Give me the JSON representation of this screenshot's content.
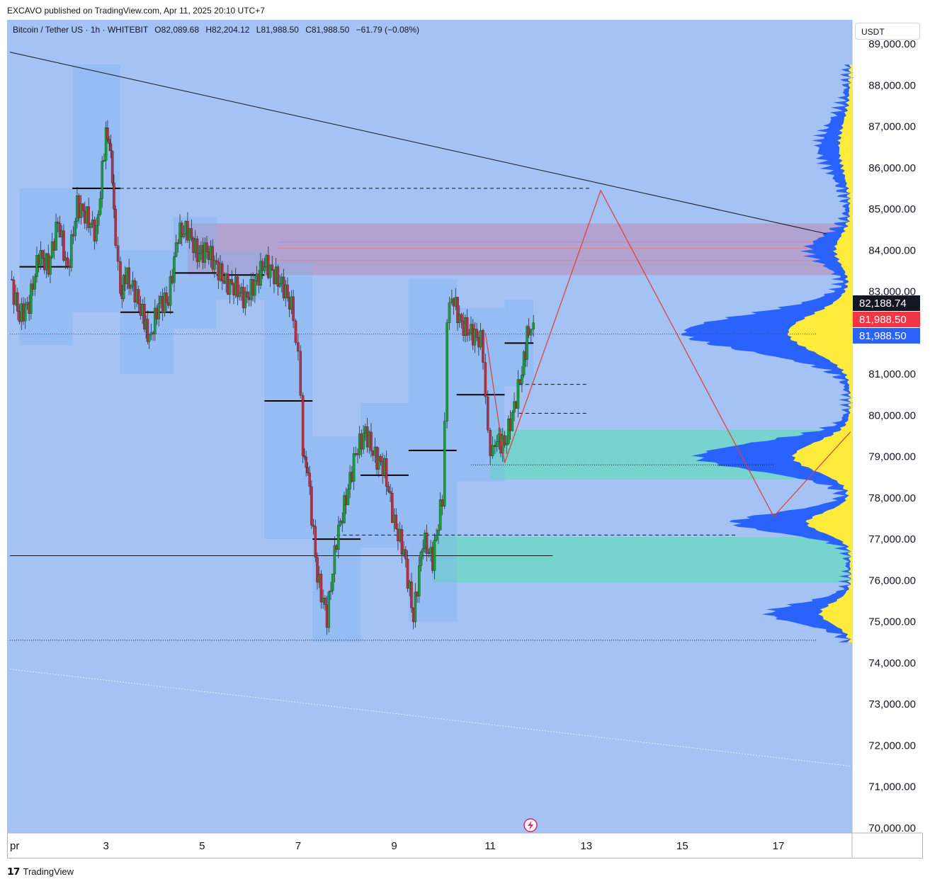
{
  "publisher_line": "EXCAVO published on TradingView.com, Apr 11, 2025 20:10 UTC+7",
  "legend": {
    "symbol": "Bitcoin / Tether US · 1h · WHITEBIT",
    "open_label": "O",
    "open": "82,089.68",
    "high_label": "H",
    "high": "82,204.12",
    "low_label": "L",
    "low": "81,988.50",
    "close_label": "C",
    "close": "81,988.50",
    "change": "−61.79 (−0.08%)"
  },
  "currency_selector": "USDT",
  "footer": {
    "logo_icon": "tradingview-logo-icon",
    "brand": "TradingView"
  },
  "colors": {
    "background": "#a4c2f4",
    "up_candle": "#1a9c3a",
    "down_candle": "#b53046",
    "profile_blue": "#2962ff",
    "profile_yellow": "#ffeb3b",
    "zone_green": "#6fd6c6",
    "zone_purple": "#b59cc8",
    "projection": "#e53935",
    "last_price_bg": "#131722",
    "current_bid_bg": "#f23645",
    "current_ask_bg": "#2962ff"
  },
  "chart_data": {
    "type": "candlestick",
    "symbol": "Bitcoin / Tether US",
    "interval": "1h",
    "exchange": "WHITEBIT",
    "y_axis": {
      "ticks": [
        "89,000.00",
        "88,000.00",
        "87,000.00",
        "86,000.00",
        "85,000.00",
        "84,000.00",
        "83,000.00",
        "82,000.00",
        "81,000.00",
        "80,000.00",
        "79,000.00",
        "78,000.00",
        "77,000.00",
        "76,000.00",
        "75,000.00",
        "74,000.00",
        "73,000.00",
        "72,000.00",
        "71,000.00",
        "70,000.00"
      ],
      "tick_values": [
        89000,
        88000,
        87000,
        86000,
        85000,
        84000,
        83000,
        82000,
        81000,
        80000,
        79000,
        78000,
        77000,
        76000,
        75000,
        74000,
        73000,
        72000,
        71000,
        70000
      ],
      "range": [
        70000,
        89000
      ]
    },
    "x_axis": {
      "ticks": [
        "pr",
        "3",
        "5",
        "7",
        "9",
        "11",
        "13",
        "15",
        "17"
      ],
      "tick_days": [
        1,
        3,
        5,
        7,
        9,
        11,
        13,
        15,
        17
      ],
      "range": [
        1,
        18.5
      ]
    },
    "price_labels": [
      {
        "text": "82,188.74",
        "value": 82188.74,
        "color": "#131722"
      },
      {
        "text": "81,988.50",
        "value": 81988.5,
        "color": "#f23645"
      },
      {
        "text": "81,988.50",
        "value": 81988.5,
        "color": "#2962ff"
      }
    ],
    "price_path": [
      [
        1.0,
        83300
      ],
      [
        1.2,
        82400
      ],
      [
        1.4,
        82700
      ],
      [
        1.6,
        83900
      ],
      [
        1.8,
        83600
      ],
      [
        2.0,
        84700
      ],
      [
        2.2,
        83500
      ],
      [
        2.4,
        85100
      ],
      [
        2.6,
        84800
      ],
      [
        2.8,
        84400
      ],
      [
        3.0,
        86900
      ],
      [
        3.1,
        86400
      ],
      [
        3.2,
        84200
      ],
      [
        3.3,
        82800
      ],
      [
        3.4,
        83400
      ],
      [
        3.6,
        83000
      ],
      [
        3.8,
        82300
      ],
      [
        3.9,
        81800
      ],
      [
        4.1,
        82700
      ],
      [
        4.3,
        82800
      ],
      [
        4.5,
        84400
      ],
      [
        4.7,
        84500
      ],
      [
        4.9,
        83900
      ],
      [
        5.1,
        84000
      ],
      [
        5.3,
        83600
      ],
      [
        5.5,
        83200
      ],
      [
        5.7,
        83100
      ],
      [
        5.9,
        82800
      ],
      [
        6.1,
        83200
      ],
      [
        6.3,
        83700
      ],
      [
        6.5,
        83400
      ],
      [
        6.7,
        83100
      ],
      [
        6.9,
        82500
      ],
      [
        7.0,
        81400
      ],
      [
        7.1,
        79100
      ],
      [
        7.2,
        78600
      ],
      [
        7.4,
        76100
      ],
      [
        7.6,
        75100
      ],
      [
        7.8,
        77000
      ],
      [
        8.0,
        78000
      ],
      [
        8.2,
        79100
      ],
      [
        8.4,
        79600
      ],
      [
        8.6,
        79000
      ],
      [
        8.8,
        78700
      ],
      [
        9.0,
        77400
      ],
      [
        9.2,
        76700
      ],
      [
        9.4,
        75100
      ],
      [
        9.6,
        77000
      ],
      [
        9.8,
        76500
      ],
      [
        10.0,
        78000
      ],
      [
        10.1,
        82100
      ],
      [
        10.2,
        82900
      ],
      [
        10.4,
        82200
      ],
      [
        10.6,
        82000
      ],
      [
        10.8,
        81800
      ],
      [
        10.9,
        80700
      ],
      [
        11.0,
        78800
      ],
      [
        11.1,
        79400
      ],
      [
        11.3,
        79300
      ],
      [
        11.5,
        80200
      ],
      [
        11.7,
        81300
      ],
      [
        11.8,
        82200
      ],
      [
        11.9,
        81990
      ]
    ],
    "horizontal_levels": [
      {
        "value": 85500,
        "style": "dashed",
        "from": 3.3,
        "to": 13.1
      },
      {
        "value": 80750,
        "style": "dashed",
        "from": 11.6,
        "to": 13.0
      },
      {
        "value": 80050,
        "style": "dashed",
        "from": 11.6,
        "to": 13.0
      },
      {
        "value": 78800,
        "style": "dotted",
        "from": 10.6,
        "to": 16.9
      },
      {
        "value": 77100,
        "style": "dashed",
        "from": 7.8,
        "to": 16.1
      },
      {
        "value": 76600,
        "style": "solid",
        "from": 1.0,
        "to": 12.3
      },
      {
        "value": 74550,
        "style": "dotted",
        "from": 1.0,
        "to": 17.8
      },
      {
        "value": 81970,
        "style": "dotted",
        "from": 1.0,
        "to": 17.8
      }
    ],
    "zones": [
      {
        "name": "supply",
        "low": 83400,
        "high": 84650,
        "from": 4.7,
        "to": 18.5,
        "color": "#b59cc8"
      },
      {
        "name": "demand-upper",
        "low": 78450,
        "high": 79650,
        "from": 11.0,
        "to": 18.5,
        "color": "#6fd6c6"
      },
      {
        "name": "demand-lower",
        "low": 75950,
        "high": 77050,
        "from": 9.8,
        "to": 18.5,
        "color": "#6fd6c6"
      }
    ],
    "trendlines": [
      {
        "points": [
          [
            1.0,
            88800
          ],
          [
            18.0,
            84400
          ]
        ],
        "style": "solid"
      },
      {
        "points": [
          [
            1.0,
            73850
          ],
          [
            18.5,
            71500
          ]
        ],
        "style": "dotted"
      }
    ],
    "projection_path": [
      [
        10.9,
        82000
      ],
      [
        11.3,
        78850
      ],
      [
        13.3,
        85450
      ],
      [
        16.9,
        77550
      ],
      [
        18.5,
        79600
      ]
    ],
    "volume_profile_range": [
      74500,
      88500
    ]
  }
}
